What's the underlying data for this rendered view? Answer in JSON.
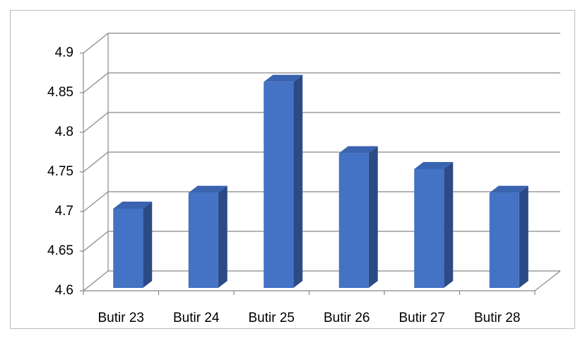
{
  "chart_data": {
    "type": "bar3d",
    "categories": [
      "Butir 23",
      "Butir 24",
      "Butir 25",
      "Butir 26",
      "Butir 27",
      "Butir 28"
    ],
    "values": [
      4.7,
      4.72,
      4.86,
      4.77,
      4.75,
      4.72
    ],
    "color": "#4472c4",
    "ylim": [
      4.6,
      4.9
    ],
    "yticks": [
      4.6,
      4.65,
      4.7,
      4.75,
      4.8,
      4.85,
      4.9
    ],
    "grid": true
  }
}
